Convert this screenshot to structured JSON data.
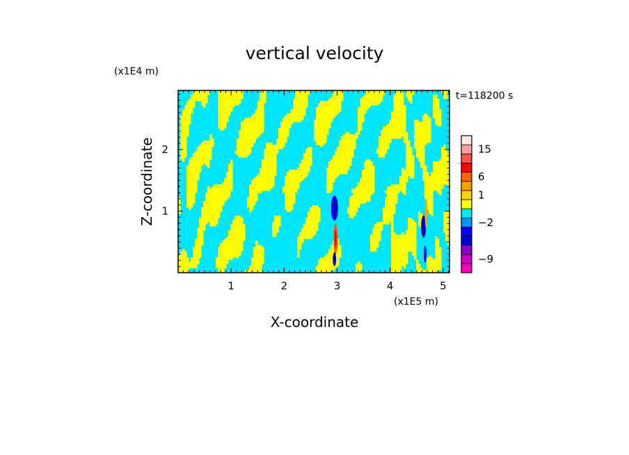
{
  "chart_data": {
    "type": "heatmap",
    "title": "vertical velocity",
    "xlabel": "X-coordinate",
    "ylabel": "Z-coordinate",
    "x_unit": "(x1E5 m)",
    "y_unit": "(x1E4 m)",
    "time_label": "t=118200 s",
    "xlim": [
      0,
      5.12
    ],
    "ylim": [
      0,
      2.96
    ],
    "x_ticks": [
      1,
      2,
      3,
      4,
      5
    ],
    "x_tick_labels": [
      "1",
      "2",
      "3",
      "4",
      "5"
    ],
    "y_ticks": [
      1,
      2
    ],
    "y_tick_labels": [
      "1",
      "2"
    ],
    "field_summary": "alternating cyan (slightly negative) and yellow (slightly positive) tilted bands; strong narrow updraft/downdraft columns near x=2.95 and x=4.65",
    "colorbar": {
      "levels": [
        {
          "color": "#ff00b4"
        },
        {
          "color": "#c800c8"
        },
        {
          "color": "#8c00c8"
        },
        {
          "color": "#0000c8"
        },
        {
          "color": "#0000ff"
        },
        {
          "color": "#0096ff"
        },
        {
          "color": "#00e6ff"
        },
        {
          "color": "#ffff00"
        },
        {
          "color": "#ffd200"
        },
        {
          "color": "#ffa000"
        },
        {
          "color": "#ff6400"
        },
        {
          "color": "#ff0000"
        },
        {
          "color": "#ff5050"
        },
        {
          "color": "#ffa0a0"
        },
        {
          "color": "#ffe6e6"
        }
      ],
      "tick_labels": [
        {
          "text": "15",
          "level": 13
        },
        {
          "text": "6",
          "level": 10
        },
        {
          "text": "1",
          "level": 8
        },
        {
          "text": "−2",
          "level": 5
        },
        {
          "text": "−9",
          "level": 1
        }
      ]
    }
  }
}
